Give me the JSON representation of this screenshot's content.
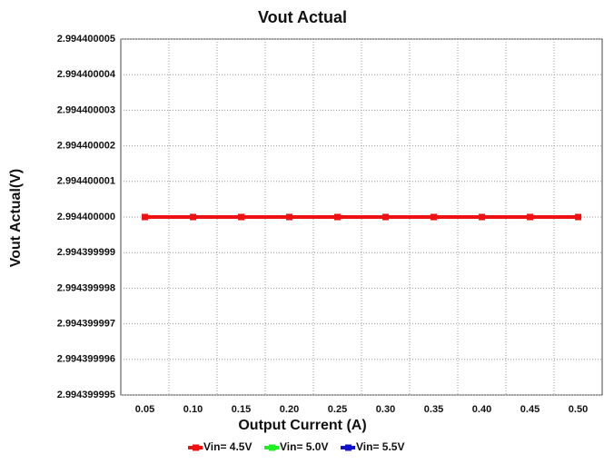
{
  "chart_data": {
    "type": "line",
    "title": "Vout Actual",
    "x_label": "Output Current (A)",
    "y_label": "Vout Actual(V)",
    "categories": [
      "0.05",
      "0.10",
      "0.15",
      "0.20",
      "0.25",
      "0.30",
      "0.35",
      "0.40",
      "0.45",
      "0.50"
    ],
    "series": [
      {
        "name": "Vin= 4.5V",
        "color": "#ee1111",
        "values": [
          2.9944,
          2.9944,
          2.9944,
          2.9944,
          2.9944,
          2.9944,
          2.9944,
          2.9944,
          2.9944,
          2.9944
        ]
      },
      {
        "name": "Vin= 5.0V",
        "color": "#22ee22",
        "values": [
          2.9944,
          2.9944,
          2.9944,
          2.9944,
          2.9944,
          2.9944,
          2.9944,
          2.9944,
          2.9944,
          2.9944
        ]
      },
      {
        "name": "Vin= 5.5V",
        "color": "#1111cc",
        "values": [
          2.9944,
          2.9944,
          2.9944,
          2.9944,
          2.9944,
          2.9944,
          2.9944,
          2.9944,
          2.9944,
          2.9944
        ]
      }
    ],
    "ylim": [
      2.994399995,
      2.994400005
    ],
    "yticks": [
      2.994399995,
      2.994399996,
      2.994399997,
      2.994399998,
      2.994399999,
      {
        "value": 2.9944,
        "label": "2.994400000"
      },
      2.994400001,
      2.994400002,
      2.994400003,
      2.994400004,
      2.994400005
    ],
    "grid": true,
    "legend": "bottom"
  }
}
